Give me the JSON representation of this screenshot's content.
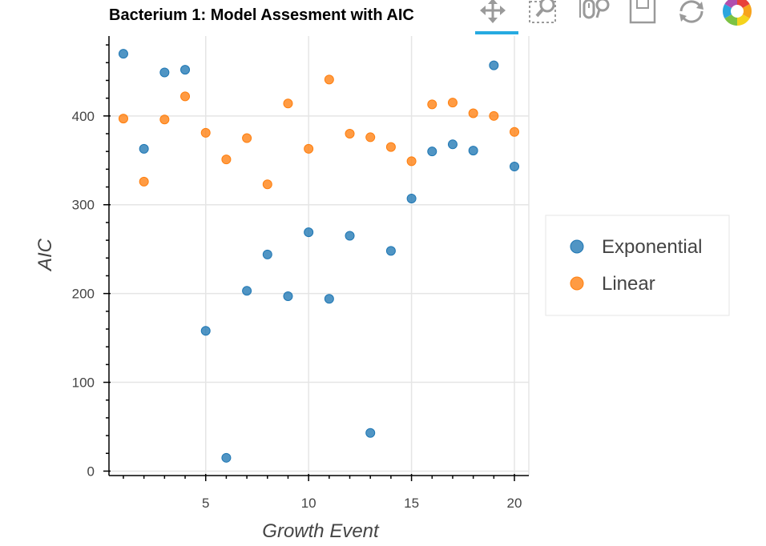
{
  "toolbar": {
    "tools": [
      {
        "name": "pan-tool-icon",
        "active": true
      },
      {
        "name": "box-zoom-tool-icon",
        "active": false
      },
      {
        "name": "wheel-zoom-tool-icon",
        "active": false
      },
      {
        "name": "save-tool-icon",
        "active": false
      },
      {
        "name": "reset-tool-icon",
        "active": false
      },
      {
        "name": "bokeh-logo-icon",
        "active": false
      }
    ],
    "active_color": "#26aae1"
  },
  "chart_data": {
    "type": "scatter",
    "title": "Bacterium 1: Model Assesment with AIC",
    "xlabel": "Growth Event",
    "ylabel": "AIC",
    "xlim": [
      0.3,
      20.7
    ],
    "ylim": [
      -5,
      490
    ],
    "x_ticks": [
      5,
      10,
      15,
      20
    ],
    "y_ticks": [
      0,
      100,
      200,
      300,
      400
    ],
    "grid": true,
    "legend_position": "right",
    "x": [
      1,
      2,
      3,
      4,
      5,
      6,
      7,
      8,
      9,
      10,
      11,
      12,
      13,
      14,
      15,
      16,
      17,
      18,
      19,
      20
    ],
    "series": [
      {
        "name": "Exponential",
        "color": "#1f77b4",
        "values": [
          470,
          363,
          449,
          452,
          158,
          15,
          203,
          244,
          197,
          269,
          194,
          265,
          43,
          248,
          307,
          360,
          368,
          361,
          457,
          343
        ]
      },
      {
        "name": "Linear",
        "color": "#ff7f0e",
        "values": [
          397,
          326,
          396,
          422,
          381,
          351,
          375,
          323,
          414,
          363,
          441,
          380,
          376,
          365,
          349,
          413,
          415,
          403,
          400,
          382
        ]
      }
    ]
  }
}
